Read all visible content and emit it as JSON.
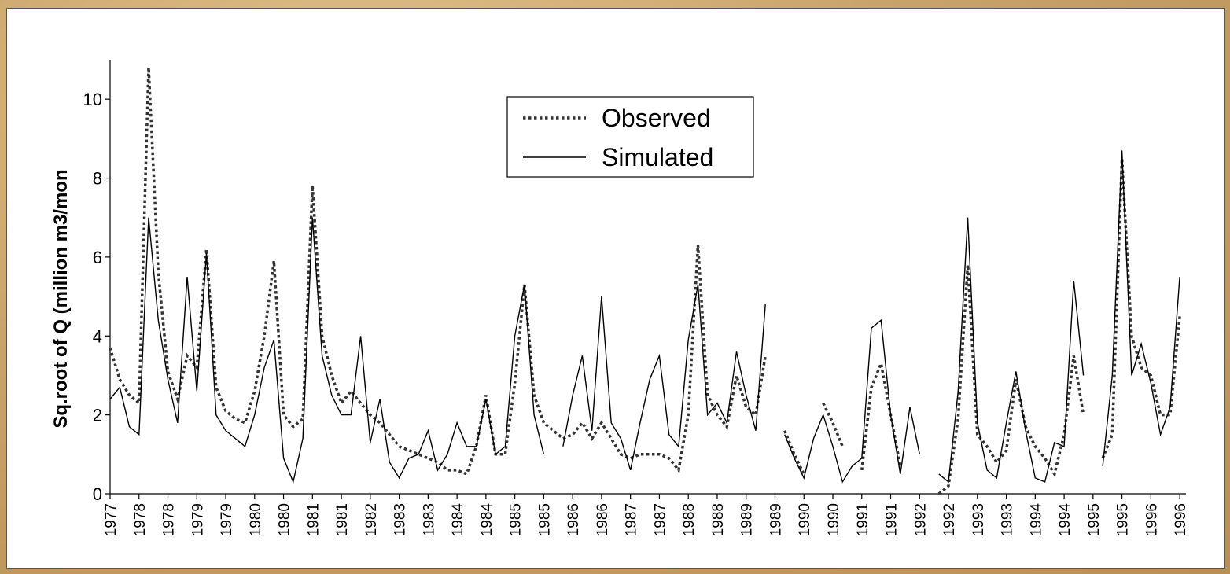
{
  "chart_data": {
    "type": "line",
    "ylabel": "Sq.root of Q (million m3/mon",
    "ylim": [
      0,
      11
    ],
    "yticks": [
      0,
      2,
      4,
      6,
      8,
      10
    ],
    "legend": "top",
    "categories": [
      "1977",
      null,
      null,
      "1978",
      null,
      null,
      "1978",
      null,
      null,
      "1979",
      null,
      null,
      "1979",
      null,
      null,
      "1980",
      null,
      null,
      "1980",
      null,
      null,
      "1981",
      null,
      null,
      "1981",
      null,
      null,
      "1982",
      null,
      null,
      "1983",
      null,
      null,
      "1983",
      null,
      null,
      "1984",
      null,
      null,
      "1984",
      null,
      null,
      "1985",
      null,
      null,
      "1985",
      null,
      null,
      "1986",
      null,
      null,
      "1986",
      null,
      null,
      "1987",
      null,
      null,
      "1987",
      null,
      null,
      "1988",
      null,
      null,
      "1988",
      null,
      null,
      "1989",
      null,
      null,
      "1989",
      null,
      null,
      "1990",
      null,
      null,
      "1990",
      null,
      null,
      "1991",
      null,
      null,
      "1991",
      null,
      null,
      "1992",
      null,
      null,
      "1992",
      null,
      null,
      "1993",
      null,
      null,
      "1993",
      null,
      null,
      "1994",
      null,
      null,
      "1994",
      null,
      null,
      "1995",
      null,
      null,
      "1995",
      null,
      null,
      "1996",
      null,
      null,
      "1996"
    ],
    "series": [
      {
        "name": "Observed",
        "color": "#333333",
        "style": "dotted",
        "values": [
          3.7,
          2.9,
          2.5,
          2.3,
          10.8,
          5.6,
          3.1,
          2.4,
          3.5,
          3.2,
          6.2,
          2.7,
          2.1,
          1.9,
          1.8,
          2.6,
          4.0,
          5.9,
          2.0,
          1.7,
          1.9,
          7.8,
          4.0,
          3.0,
          2.3,
          2.6,
          2.3,
          2.0,
          1.8,
          1.5,
          1.2,
          1.1,
          1.0,
          0.9,
          0.8,
          0.6,
          0.6,
          0.5,
          1.2,
          2.5,
          1.0,
          1.0,
          2.8,
          5.3,
          2.5,
          1.8,
          1.6,
          1.4,
          1.5,
          1.8,
          1.4,
          1.8,
          1.4,
          1.0,
          0.9,
          1.0,
          1.0,
          1.0,
          0.9,
          0.6,
          2.0,
          6.3,
          2.5,
          2.0,
          1.7,
          3.0,
          2.2,
          2.0,
          3.5,
          null,
          1.6,
          1.0,
          0.5,
          null,
          2.3,
          1.8,
          1.2,
          null,
          0.6,
          2.7,
          3.3,
          2.0,
          0.7,
          null,
          0.05,
          null,
          0.0,
          0.2,
          1.9,
          5.8,
          1.5,
          1.2,
          0.8,
          1.1,
          2.9,
          1.7,
          1.2,
          0.9,
          0.5,
          1.5,
          3.5,
          2.0,
          null,
          0.9,
          1.5,
          8.5,
          4.0,
          3.2,
          3.0,
          2.0,
          2.0,
          4.5
        ]
      },
      {
        "name": "Simulated",
        "color": "#000000",
        "style": "solid",
        "values": [
          2.4,
          2.7,
          1.7,
          1.5,
          7.0,
          4.4,
          2.9,
          1.8,
          5.5,
          2.6,
          6.1,
          2.0,
          1.6,
          1.4,
          1.2,
          2.0,
          3.2,
          3.9,
          0.9,
          0.3,
          1.4,
          7.0,
          3.5,
          2.5,
          2.0,
          2.0,
          4.0,
          1.3,
          2.4,
          0.8,
          0.4,
          0.9,
          1.0,
          1.6,
          0.6,
          1.0,
          1.8,
          1.2,
          1.2,
          2.4,
          1.0,
          1.2,
          4.0,
          5.3,
          2.0,
          1.0,
          null,
          1.2,
          2.5,
          3.5,
          1.6,
          5.0,
          1.8,
          1.4,
          0.6,
          1.8,
          2.9,
          3.5,
          1.5,
          1.2,
          3.9,
          5.3,
          2.0,
          2.3,
          1.8,
          3.6,
          2.5,
          1.6,
          4.8,
          null,
          1.5,
          0.9,
          0.4,
          1.4,
          2.0,
          1.2,
          0.3,
          0.7,
          0.9,
          4.2,
          4.4,
          2.0,
          0.5,
          2.2,
          1.0,
          null,
          0.5,
          0.3,
          2.6,
          7.0,
          1.8,
          0.6,
          0.4,
          1.8,
          3.1,
          1.6,
          0.4,
          0.3,
          1.3,
          1.2,
          5.4,
          3.0,
          null,
          0.7,
          3.0,
          8.7,
          3.0,
          3.8,
          2.8,
          1.5,
          2.2,
          5.5
        ]
      }
    ]
  }
}
